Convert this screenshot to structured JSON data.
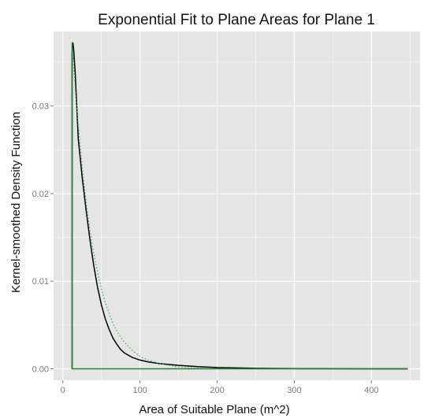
{
  "chart_data": {
    "type": "line",
    "title": "Exponential Fit to Plane Areas for Plane 1",
    "xlabel": "Area of Suitable Plane (m^2)",
    "ylabel": "Kernel-smoothed Density Function",
    "xlim": [
      -12,
      463
    ],
    "ylim": [
      -0.0013,
      0.0385
    ],
    "x_ticks": [
      0,
      100,
      200,
      300,
      400
    ],
    "x_tick_labels": [
      "0",
      "100",
      "200",
      "300",
      "400"
    ],
    "y_ticks": [
      0.0,
      0.01,
      0.02,
      0.03
    ],
    "y_tick_labels": [
      "0.00",
      "0.01",
      "0.02",
      "0.03"
    ],
    "grid": true,
    "background": "#e5e5e5",
    "grid_color": "#ffffff",
    "series": [
      {
        "style": "solid",
        "color": "#000000",
        "x": [
          12,
          12,
          13,
          14,
          16,
          18,
          20,
          25,
          30,
          35,
          40,
          45,
          50,
          55,
          60,
          65,
          70,
          75,
          80,
          90,
          100,
          110,
          125,
          150,
          175,
          200,
          250,
          300,
          350,
          400,
          447
        ],
        "y": [
          0.0,
          0.036,
          0.0372,
          0.0365,
          0.0338,
          0.03,
          0.0262,
          0.0219,
          0.0182,
          0.0148,
          0.0118,
          0.0093,
          0.0073,
          0.0057,
          0.0045,
          0.0035,
          0.0028,
          0.0022,
          0.0018,
          0.0013,
          0.001,
          0.0008,
          0.0006,
          0.0004,
          0.00025,
          0.00015,
          6e-05,
          2e-05,
          1e-05,
          5e-06,
          0.0
        ]
      },
      {
        "style": "dotted",
        "color": "#3fae3f",
        "x": [
          12,
          14,
          16,
          18,
          20,
          25,
          30,
          35,
          40,
          45,
          50,
          55,
          60,
          65,
          70,
          75,
          80,
          90,
          100,
          110,
          125,
          150,
          175,
          200,
          250,
          300,
          350,
          400,
          447
        ],
        "y": [
          0.0373,
          0.0346,
          0.0322,
          0.0299,
          0.0278,
          0.0231,
          0.0192,
          0.0159,
          0.0132,
          0.011,
          0.0091,
          0.0076,
          0.0063,
          0.0052,
          0.0043,
          0.0036,
          0.003,
          0.0021,
          0.0014,
          0.001,
          0.0006,
          0.0002,
          8e-05,
          3e-05,
          4e-06,
          0.0,
          0.0,
          0.0,
          0.0
        ]
      },
      {
        "style": "solid",
        "color": "#2e7d32",
        "x": [
          12,
          12,
          447
        ],
        "y": [
          0.0372,
          0.0,
          0.0
        ]
      }
    ]
  }
}
